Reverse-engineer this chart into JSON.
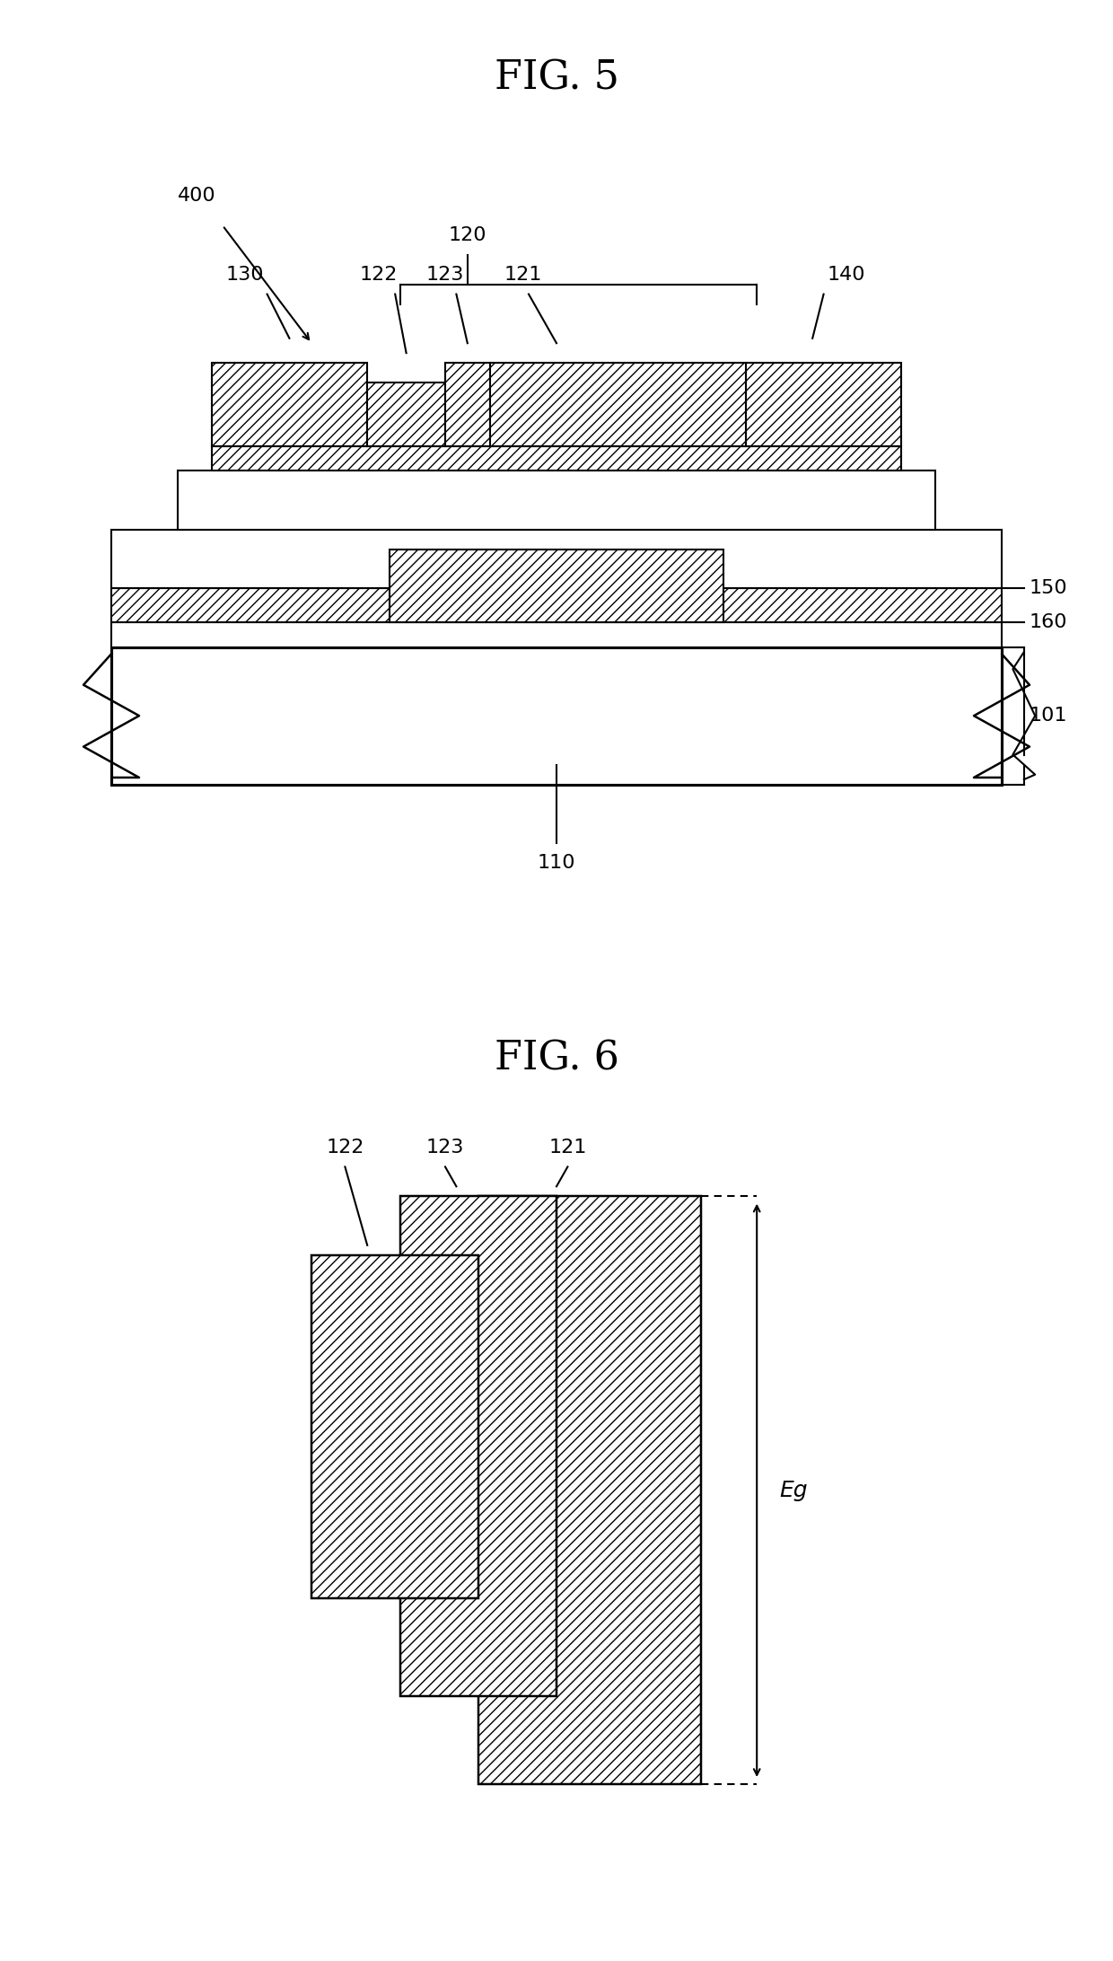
{
  "fig5_title": "FIG. 5",
  "fig6_title": "FIG. 6",
  "bg_color": "#ffffff",
  "line_color": "#000000",
  "label_fontsize": 16,
  "title_fontsize": 32,
  "label_color": "#000000",
  "lw": 1.5
}
